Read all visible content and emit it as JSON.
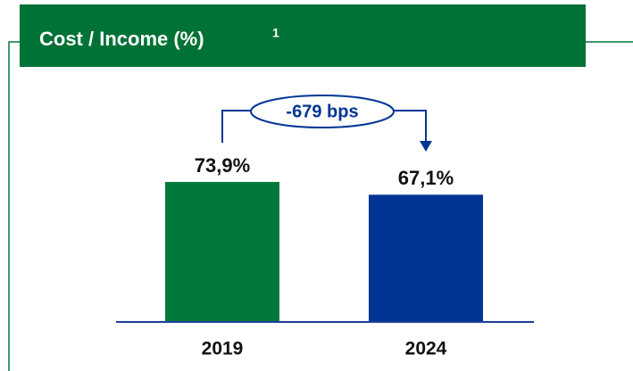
{
  "chart_data": {
    "type": "bar",
    "title": "Cost / Income (%)",
    "title_footnote": "1",
    "categories": [
      "2019",
      "2024"
    ],
    "values": [
      73.9,
      67.1
    ],
    "value_labels": [
      "73,9%",
      "67,1%"
    ],
    "colors": [
      "#00793a",
      "#003594"
    ],
    "annotation": "-679 bps"
  }
}
